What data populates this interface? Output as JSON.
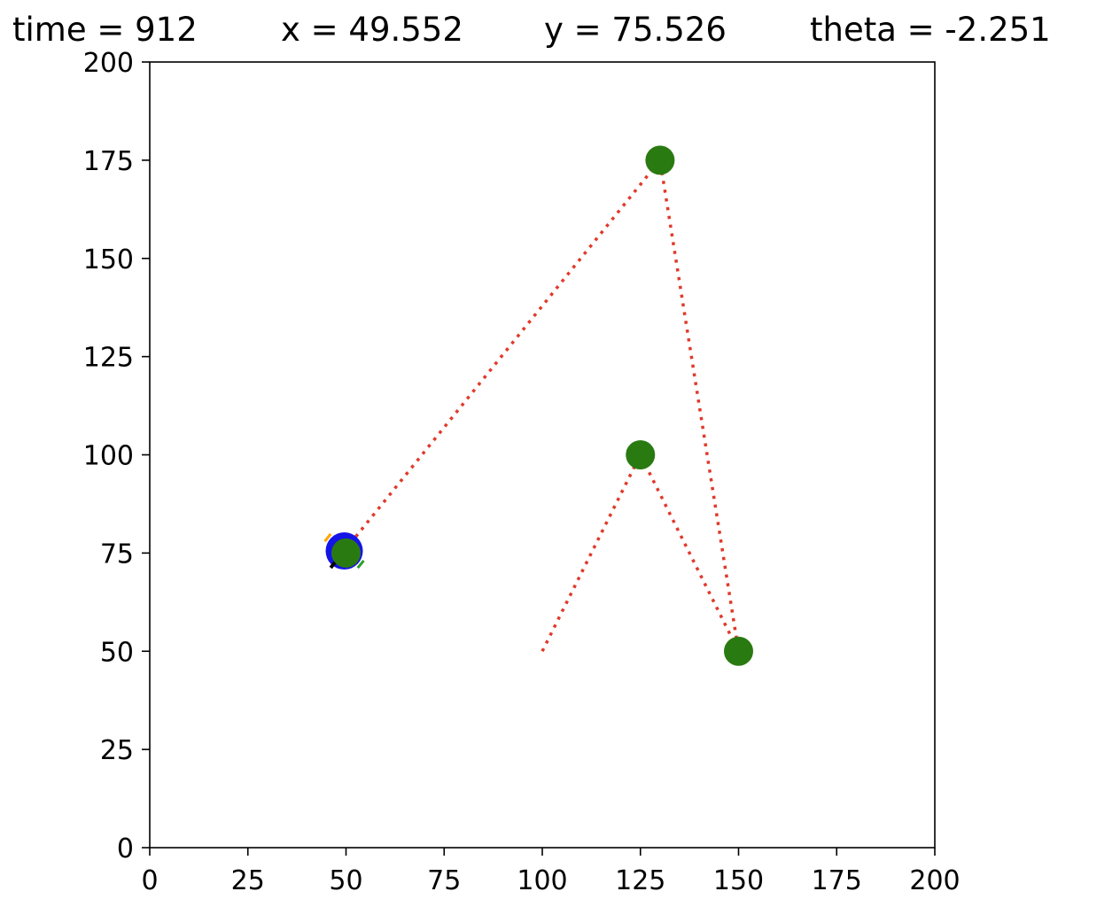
{
  "status": {
    "time": "time = 912",
    "x": "x = 49.552",
    "y": "y = 75.526",
    "theta": "theta = -2.251"
  },
  "chart_data": {
    "type": "scatter",
    "title": "",
    "xlabel": "",
    "ylabel": "",
    "xlim": [
      0,
      200
    ],
    "ylim": [
      0,
      200
    ],
    "grid": false,
    "xticks": [
      0,
      25,
      50,
      75,
      100,
      125,
      150,
      175,
      200
    ],
    "yticks": [
      0,
      25,
      50,
      75,
      100,
      125,
      150,
      175,
      200
    ],
    "waypoints": [
      {
        "x": 50,
        "y": 75
      },
      {
        "x": 125,
        "y": 100
      },
      {
        "x": 130,
        "y": 175
      },
      {
        "x": 150,
        "y": 50
      }
    ],
    "path": [
      {
        "x": 100,
        "y": 50
      },
      {
        "x": 125,
        "y": 100
      },
      {
        "x": 150,
        "y": 50
      },
      {
        "x": 130,
        "y": 175
      },
      {
        "x": 49.552,
        "y": 75.526
      }
    ],
    "robot": {
      "x": 49.552,
      "y": 75.526,
      "theta": -2.251
    },
    "colors": {
      "waypoint": "#2a7a12",
      "path": "#e03a2a",
      "robot": "#1414e6",
      "heading": "#000000",
      "wheel_left": "#2ca02c",
      "wheel_right": "#ffa500"
    }
  }
}
